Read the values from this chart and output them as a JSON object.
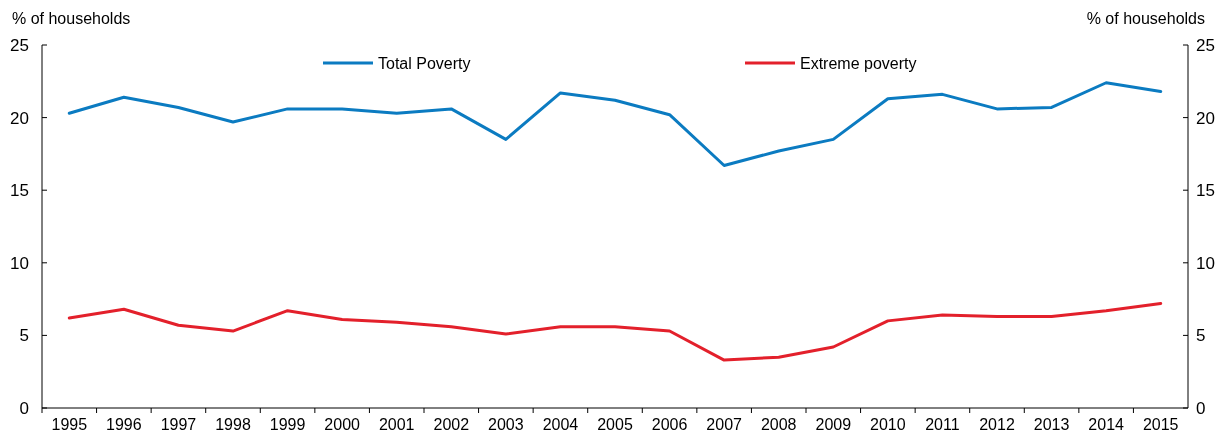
{
  "chart_data": {
    "type": "line",
    "ylabel": "% of households",
    "y2label": "% of households",
    "categories": [
      "1995",
      "1996",
      "1997",
      "1998",
      "1999",
      "2000",
      "2001",
      "2002",
      "2003",
      "2004",
      "2005",
      "2006",
      "2007",
      "2008",
      "2009",
      "2010",
      "2011",
      "2012",
      "2013",
      "2014",
      "2015"
    ],
    "series": [
      {
        "name": "Total Poverty",
        "color": "#0b7bc1",
        "values": [
          20.3,
          21.4,
          20.7,
          19.7,
          20.6,
          20.6,
          20.3,
          20.6,
          18.5,
          21.7,
          21.2,
          20.2,
          16.7,
          17.7,
          18.5,
          21.3,
          21.6,
          20.6,
          20.7,
          22.4,
          21.8
        ]
      },
      {
        "name": "Extreme poverty",
        "color": "#e3202b",
        "values": [
          6.2,
          6.8,
          5.7,
          5.3,
          6.7,
          6.1,
          5.9,
          5.6,
          5.1,
          5.6,
          5.6,
          5.3,
          3.3,
          3.5,
          4.2,
          6.0,
          6.4,
          6.3,
          6.3,
          6.7,
          7.2
        ]
      }
    ],
    "ylim": [
      0,
      25
    ],
    "yticks": [
      0,
      5,
      10,
      15,
      20,
      25
    ],
    "y2lim": [
      0,
      25
    ],
    "y2ticks": [
      0,
      5,
      10,
      15,
      20,
      25
    ],
    "legend": "top",
    "grid": false,
    "marker": "none",
    "line_style": "solid"
  }
}
